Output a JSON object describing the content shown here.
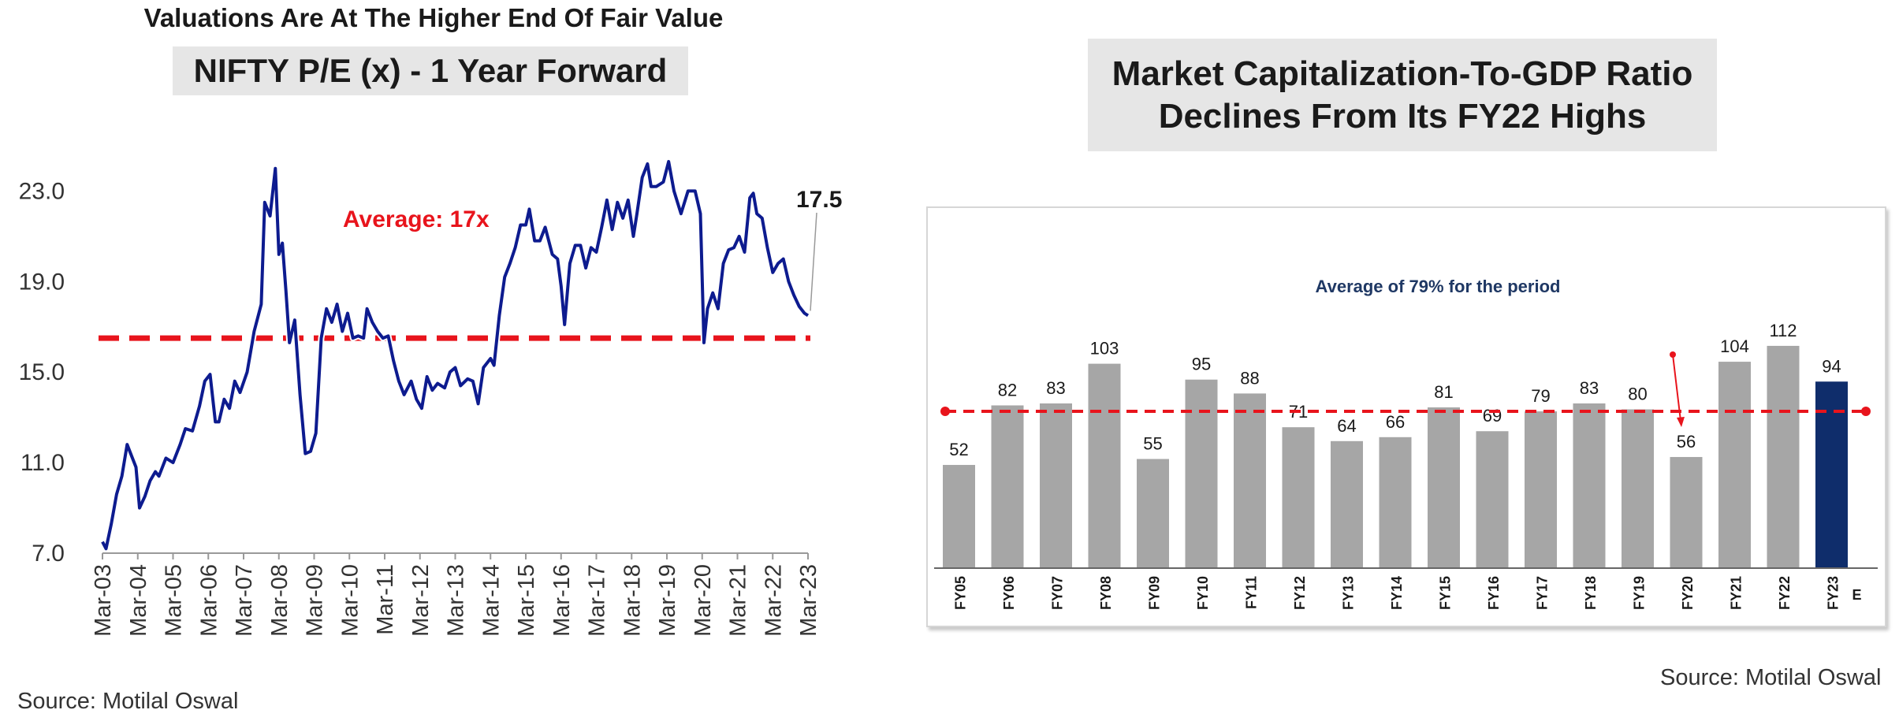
{
  "headline": "Valuations Are At The Higher End Of  Fair Value",
  "left_source": "Source: Motilal Oswal",
  "right_source": "Source: Motilal Oswal",
  "colors": {
    "pe_line": "#0d1b8f",
    "average": "#e8141c",
    "bars": "#a6a6a6",
    "estimate_bar": "#0f2d6b",
    "avg_label": "#1f3864"
  },
  "chart_data": [
    {
      "type": "line",
      "title": "NIFTY P/E (x) - 1 Year Forward",
      "ylim": [
        7.0,
        25.0
      ],
      "yticks": [
        "7.0",
        "11.0",
        "15.0",
        "19.0",
        "23.0"
      ],
      "xticks": [
        "Mar-03",
        "Mar-04",
        "Mar-05",
        "Mar-06",
        "Mar-07",
        "Mar-08",
        "Mar-09",
        "Mar-10",
        "Mar-11",
        "Mar-12",
        "Mar-13",
        "Mar-14",
        "Mar-15",
        "Mar-16",
        "Mar-17",
        "Mar-18",
        "Mar-19",
        "Mar-20",
        "Mar-21",
        "Mar-22",
        "Mar-23"
      ],
      "average": 16.5,
      "average_label": "Average: 17x",
      "end_label": "17.5",
      "series": [
        {
          "x": [
            2003.0,
            2003.1,
            2003.25,
            2003.4,
            2003.55,
            2003.7,
            2003.85,
            2003.95,
            2004.05,
            2004.2,
            2004.35,
            2004.5,
            2004.6,
            2004.8,
            2005.0,
            2005.2,
            2005.35,
            2005.55,
            2005.75,
            2005.9,
            2006.05,
            2006.2,
            2006.3,
            2006.45,
            2006.6,
            2006.75,
            2006.9,
            2007.1,
            2007.3,
            2007.5,
            2007.6,
            2007.75,
            2007.9,
            2008.0,
            2008.1,
            2008.2,
            2008.3,
            2008.45,
            2008.6,
            2008.75,
            2008.9,
            2009.05,
            2009.2,
            2009.35,
            2009.5,
            2009.65,
            2009.8,
            2009.95,
            2010.1,
            2010.25,
            2010.4,
            2010.5,
            2010.65,
            2010.8,
            2010.95,
            2011.1,
            2011.25,
            2011.4,
            2011.55,
            2011.75,
            2011.9,
            2012.05,
            2012.2,
            2012.35,
            2012.5,
            2012.7,
            2012.85,
            2013.0,
            2013.15,
            2013.35,
            2013.5,
            2013.65,
            2013.8,
            2014.0,
            2014.1,
            2014.25,
            2014.4,
            2014.55,
            2014.7,
            2014.85,
            2015.0,
            2015.1,
            2015.25,
            2015.4,
            2015.55,
            2015.75,
            2015.9,
            2016.0,
            2016.1,
            2016.25,
            2016.4,
            2016.55,
            2016.7,
            2016.85,
            2017.0,
            2017.15,
            2017.3,
            2017.45,
            2017.6,
            2017.75,
            2017.9,
            2018.05,
            2018.15,
            2018.3,
            2018.45,
            2018.55,
            2018.7,
            2018.9,
            2019.05,
            2019.2,
            2019.4,
            2019.6,
            2019.8,
            2019.95,
            2020.05,
            2020.15,
            2020.3,
            2020.45,
            2020.6,
            2020.75,
            2020.9,
            2021.05,
            2021.2,
            2021.35,
            2021.45,
            2021.55,
            2021.7,
            2021.85,
            2022.0,
            2022.15,
            2022.3,
            2022.45,
            2022.6,
            2022.75,
            2022.9,
            2023.0
          ],
          "y": [
            7.5,
            7.2,
            8.3,
            9.6,
            10.4,
            11.8,
            11.2,
            10.8,
            9.0,
            9.5,
            10.2,
            10.6,
            10.4,
            11.2,
            11.0,
            11.8,
            12.5,
            12.4,
            13.5,
            14.6,
            14.9,
            12.8,
            12.8,
            13.8,
            13.4,
            14.6,
            14.1,
            15.0,
            16.8,
            18.0,
            22.5,
            21.9,
            24.0,
            20.2,
            20.7,
            18.6,
            16.3,
            17.3,
            14.0,
            11.4,
            11.5,
            12.3,
            16.5,
            17.8,
            17.2,
            18.0,
            16.8,
            17.6,
            16.5,
            16.6,
            16.5,
            17.8,
            17.2,
            16.8,
            16.5,
            16.6,
            15.5,
            14.6,
            14.0,
            14.6,
            13.8,
            13.4,
            14.8,
            14.2,
            14.5,
            14.3,
            15.0,
            15.2,
            14.4,
            14.7,
            14.6,
            13.6,
            15.2,
            15.6,
            15.3,
            17.5,
            19.2,
            19.8,
            20.5,
            21.5,
            21.5,
            22.2,
            20.8,
            20.8,
            21.4,
            20.2,
            20.0,
            18.8,
            17.1,
            19.8,
            20.6,
            20.6,
            19.6,
            20.5,
            20.3,
            21.4,
            22.6,
            21.3,
            22.5,
            21.8,
            22.6,
            21.0,
            22.0,
            23.6,
            24.2,
            23.2,
            23.2,
            23.4,
            24.3,
            23.0,
            22.0,
            23.0,
            23.0,
            22.0,
            16.3,
            17.8,
            18.5,
            17.8,
            19.8,
            20.4,
            20.5,
            21.0,
            20.3,
            22.7,
            22.9,
            22.0,
            21.8,
            20.5,
            19.4,
            19.8,
            20.0,
            19.0,
            18.4,
            17.9,
            17.6,
            17.5
          ]
        }
      ]
    },
    {
      "type": "bar",
      "title": "Market Capitalization-To-GDP Ratio Declines From Its FY22 Highs",
      "title_lines": [
        "Market Capitalization-To-GDP Ratio",
        "Declines From Its FY22 Highs"
      ],
      "categories": [
        "FY05",
        "FY06",
        "FY07",
        "FY08",
        "FY09",
        "FY10",
        "FY11",
        "FY12",
        "FY13",
        "FY14",
        "FY15",
        "FY16",
        "FY17",
        "FY18",
        "FY19",
        "FY20",
        "FY21",
        "FY22",
        "FY23E"
      ],
      "category_labels": [
        [
          "FY05"
        ],
        [
          "FY06"
        ],
        [
          "FY07"
        ],
        [
          "FY08"
        ],
        [
          "FY09"
        ],
        [
          "FY10"
        ],
        [
          "FY11"
        ],
        [
          "FY12"
        ],
        [
          "FY13"
        ],
        [
          "FY14"
        ],
        [
          "FY15"
        ],
        [
          "FY16"
        ],
        [
          "FY17"
        ],
        [
          "FY18"
        ],
        [
          "FY19"
        ],
        [
          "FY20"
        ],
        [
          "FY21"
        ],
        [
          "FY22"
        ],
        [
          "FY23",
          "E"
        ]
      ],
      "values": [
        52,
        82,
        83,
        103,
        55,
        95,
        88,
        71,
        64,
        66,
        81,
        69,
        79,
        83,
        80,
        56,
        104,
        112,
        94
      ],
      "data_labels": [
        "52",
        "82",
        "83",
        "103",
        "55",
        "95",
        "88",
        "71",
        "64",
        "66",
        "81",
        "69",
        "79",
        "83",
        "80",
        "56",
        "104",
        "112",
        "94"
      ],
      "highlight_index": 18,
      "average": 79,
      "average_label": "Average of 79% for the period",
      "ylim": [
        0,
        135
      ]
    }
  ]
}
